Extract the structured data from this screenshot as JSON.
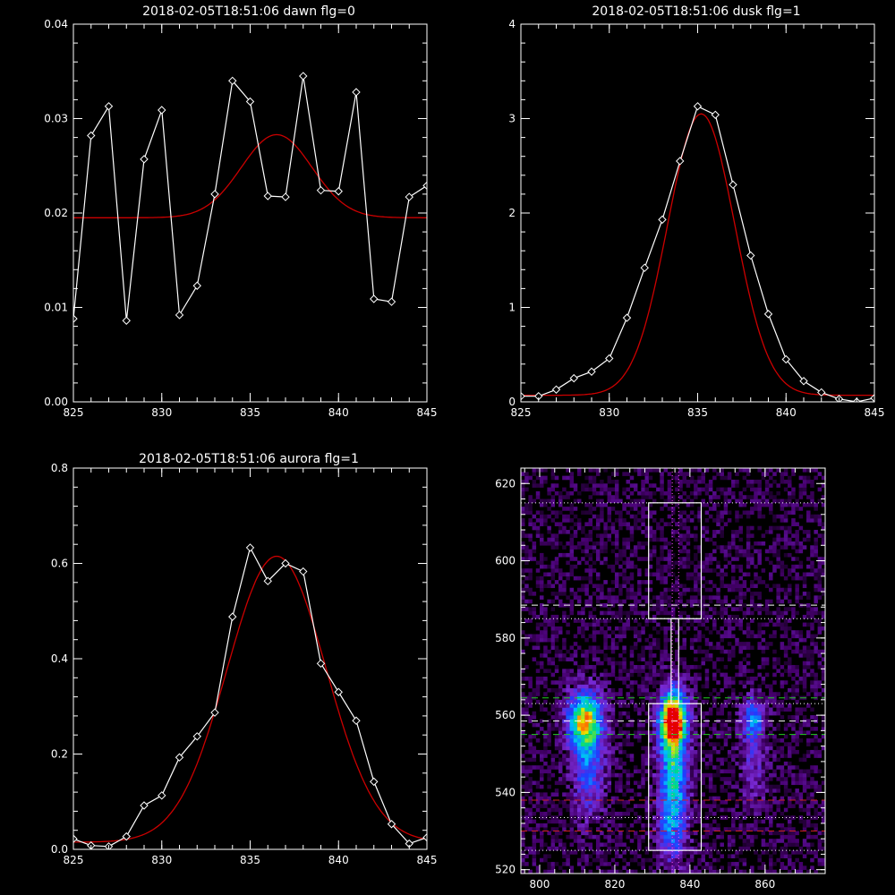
{
  "colors": {
    "background": "#000000",
    "data_line": "#ffffff",
    "fit_line": "#cc0000"
  },
  "chart_data": [
    {
      "id": "dawn",
      "type": "line",
      "title": "2018-02-05T18:51:06 dawn flg=0",
      "xlim": [
        825,
        845
      ],
      "ylim": [
        0,
        0.04
      ],
      "xticks": [
        825,
        830,
        835,
        840,
        845
      ],
      "xtick_labels": [
        "825",
        "830",
        "835",
        "840",
        "845"
      ],
      "yticks": [
        0,
        0.01,
        0.02,
        0.03,
        0.04
      ],
      "ytick_labels": [
        "0.00",
        "0.01",
        "0.02",
        "0.03",
        "0.04"
      ],
      "series": [
        {
          "role": "data",
          "x": [
            825,
            826,
            827,
            828,
            829,
            830,
            831,
            832,
            833,
            834,
            835,
            836,
            837,
            838,
            839,
            840,
            841,
            842,
            843,
            844,
            845
          ],
          "y": [
            0.0088,
            0.0282,
            0.0313,
            0.0086,
            0.0257,
            0.0309,
            0.0092,
            0.0123,
            0.022,
            0.034,
            0.0318,
            0.0218,
            0.0217,
            0.0345,
            0.0224,
            0.0223,
            0.0328,
            0.0109,
            0.0106,
            0.0217,
            0.0229
          ]
        },
        {
          "role": "fit",
          "fit": {
            "base": 0.0195,
            "amp": 0.0088,
            "center": 836.5,
            "sigma": 2.0
          }
        }
      ]
    },
    {
      "id": "dusk",
      "type": "line",
      "title": "2018-02-05T18:51:06 dusk flg=1",
      "xlim": [
        825,
        845
      ],
      "ylim": [
        0,
        4
      ],
      "xticks": [
        825,
        830,
        835,
        840,
        845
      ],
      "xtick_labels": [
        "825",
        "830",
        "835",
        "840",
        "845"
      ],
      "yticks": [
        0,
        1,
        2,
        3,
        4
      ],
      "ytick_labels": [
        "0",
        "1",
        "2",
        "3",
        "4"
      ],
      "series": [
        {
          "role": "data",
          "x": [
            825,
            826,
            827,
            828,
            829,
            830,
            831,
            832,
            833,
            834,
            835,
            836,
            837,
            838,
            839,
            840,
            841,
            842,
            843,
            844,
            845
          ],
          "y": [
            0.06,
            0.06,
            0.13,
            0.25,
            0.32,
            0.46,
            0.89,
            1.42,
            1.93,
            2.55,
            3.13,
            3.04,
            2.3,
            1.55,
            0.93,
            0.45,
            0.22,
            0.1,
            0.03,
            0.0,
            0.04
          ]
        },
        {
          "role": "fit",
          "fit": {
            "base": 0.07,
            "amp": 2.98,
            "center": 835.2,
            "sigma": 1.9
          }
        }
      ]
    },
    {
      "id": "aurora",
      "type": "line",
      "title": "2018-02-05T18:51:06 aurora flg=1",
      "xlim": [
        825,
        845
      ],
      "ylim": [
        0,
        0.8
      ],
      "xticks": [
        825,
        830,
        835,
        840,
        845
      ],
      "xtick_labels": [
        "825",
        "830",
        "835",
        "840",
        "845"
      ],
      "yticks": [
        0,
        0.2,
        0.4,
        0.6,
        0.8
      ],
      "ytick_labels": [
        "0.0",
        "0.2",
        "0.4",
        "0.6",
        "0.8"
      ],
      "series": [
        {
          "role": "data",
          "x": [
            825,
            826,
            827,
            828,
            829,
            830,
            831,
            832,
            833,
            834,
            835,
            836,
            837,
            838,
            839,
            840,
            841,
            842,
            843,
            844,
            845
          ],
          "y": [
            0.022,
            0.008,
            0.006,
            0.027,
            0.092,
            0.113,
            0.193,
            0.237,
            0.287,
            0.488,
            0.633,
            0.563,
            0.6,
            0.583,
            0.39,
            0.33,
            0.27,
            0.142,
            0.053,
            0.012,
            0.025
          ]
        },
        {
          "role": "fit",
          "fit": {
            "base": 0.015,
            "amp": 0.6,
            "center": 836.5,
            "sigma": 2.8
          }
        }
      ]
    },
    {
      "id": "image",
      "type": "heatmap",
      "xlim": [
        795,
        876
      ],
      "ylim": [
        519,
        624
      ],
      "xticks": [
        800,
        820,
        840,
        860
      ],
      "xtick_labels": [
        "800",
        "820",
        "840",
        "860"
      ],
      "yticks": [
        520,
        540,
        560,
        580,
        600,
        620
      ],
      "ytick_labels": [
        "520",
        "540",
        "560",
        "580",
        "600",
        "620"
      ],
      "emission_blobs": [
        {
          "x": 812,
          "y": 559,
          "sx": 3.2,
          "sy": 5,
          "amp": 0.72
        },
        {
          "x": 813,
          "y": 547,
          "sx": 3,
          "sy": 9,
          "amp": 0.35
        },
        {
          "x": 835.5,
          "y": 559,
          "sx": 2.5,
          "sy": 5,
          "amp": 1.0
        },
        {
          "x": 835.5,
          "y": 545,
          "sx": 2.6,
          "sy": 10,
          "amp": 0.55
        },
        {
          "x": 835.5,
          "y": 530,
          "sx": 2.8,
          "sy": 7,
          "amp": 0.25
        },
        {
          "x": 857,
          "y": 559,
          "sx": 2,
          "sy": 4,
          "amp": 0.4
        },
        {
          "x": 857,
          "y": 547,
          "sx": 2.5,
          "sy": 8,
          "amp": 0.18
        }
      ],
      "boxes": [
        {
          "x0": 829,
          "x1": 843,
          "y0": 585,
          "y1": 615
        },
        {
          "x0": 829,
          "x1": 843,
          "y0": 525,
          "y1": 563
        }
      ],
      "hlines": [
        {
          "y": 615,
          "color": "#ffffff",
          "style": "dotted"
        },
        {
          "y": 588.5,
          "color": "#ffffff",
          "style": "dashed"
        },
        {
          "y": 585,
          "color": "#ffffff",
          "style": "dotted"
        },
        {
          "y": 564.5,
          "color": "#22cc22",
          "style": "dashed"
        },
        {
          "y": 563,
          "color": "#ffffff",
          "style": "dotted"
        },
        {
          "y": 558.5,
          "color": "#ffffff",
          "style": "dashed"
        },
        {
          "y": 555,
          "color": "#22cc22",
          "style": "dashed"
        },
        {
          "y": 538,
          "color": "#cc2222",
          "style": "dashed"
        },
        {
          "y": 533.5,
          "color": "#ffffff",
          "style": "dotted"
        },
        {
          "y": 530,
          "color": "#cc2222",
          "style": "dashed"
        },
        {
          "y": 525,
          "color": "#ffffff",
          "style": "dotted"
        }
      ],
      "vlines": [
        {
          "x": 835.3,
          "color": "#ff55ff",
          "style": "dotted"
        },
        {
          "x": 837.0,
          "color": "#ff55ff",
          "style": "dotted"
        }
      ]
    }
  ]
}
